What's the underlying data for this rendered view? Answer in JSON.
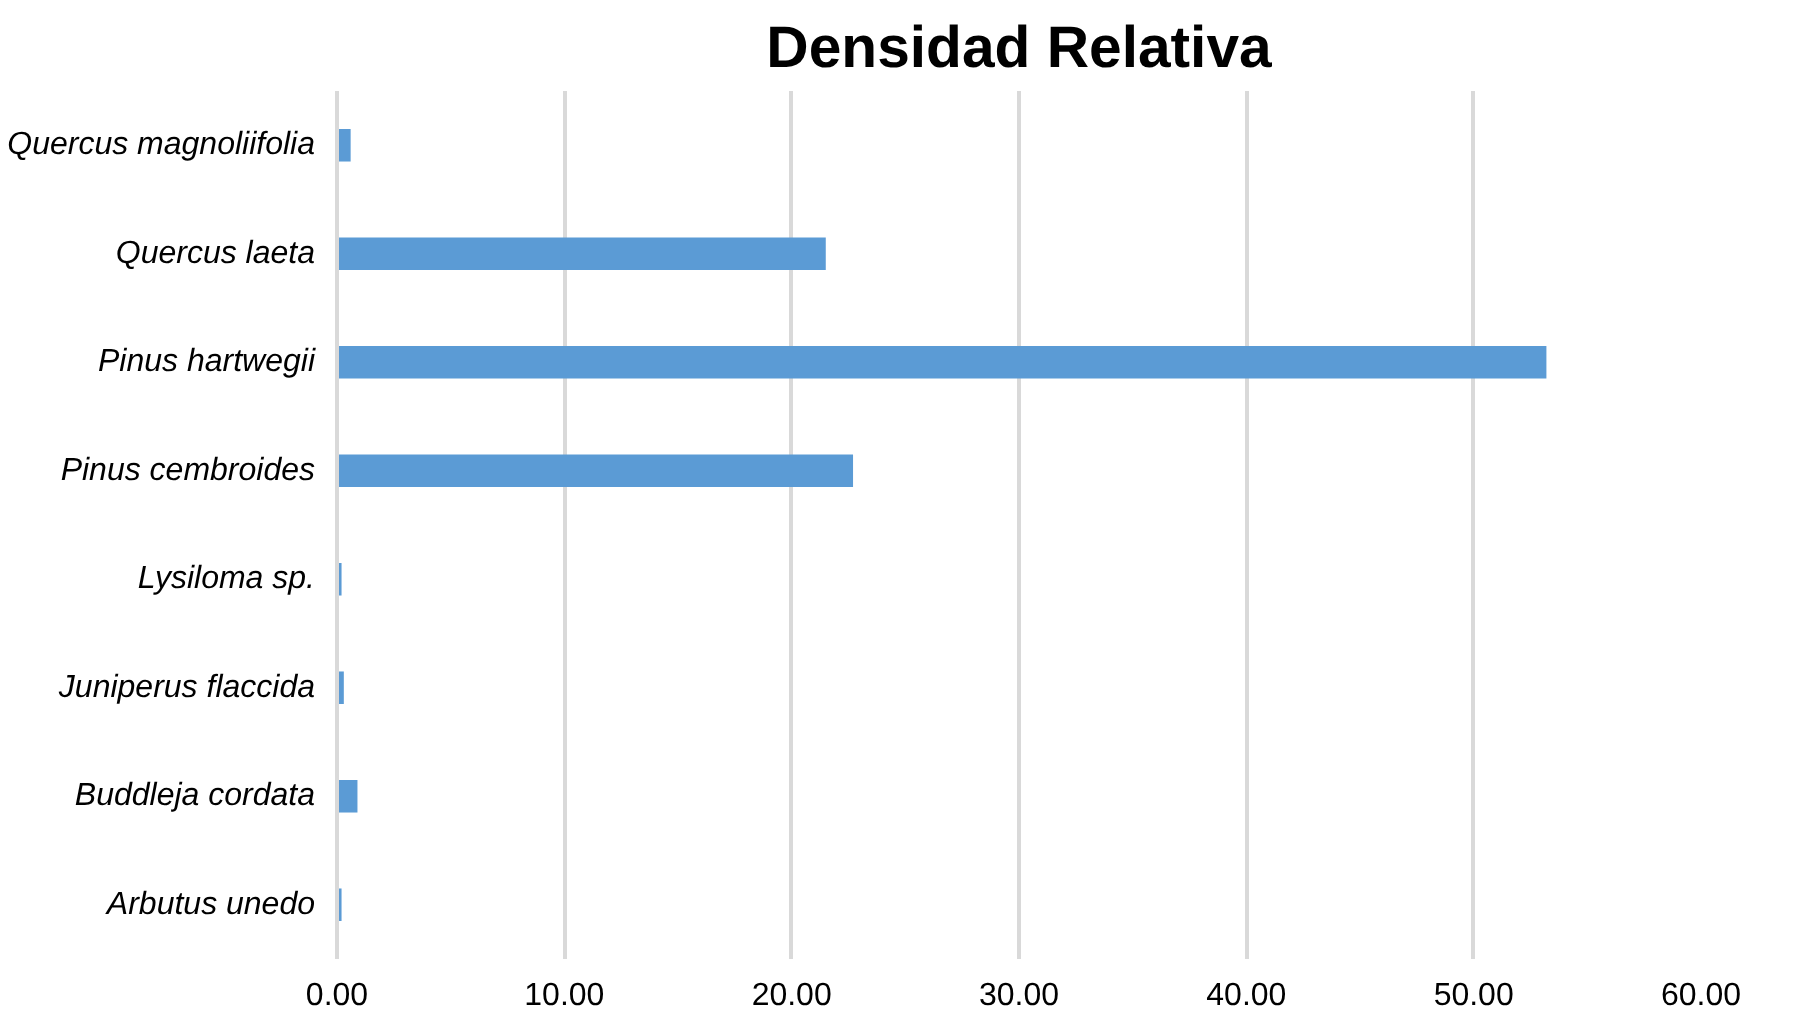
{
  "chart_data": {
    "type": "bar",
    "orientation": "horizontal",
    "title": "Densidad Relativa",
    "categories": [
      "Quercus magnoliifolia",
      "Quercus laeta",
      "Pinus hartwegii",
      "Pinus cembroides",
      "Lysiloma sp.",
      "Juniperus flaccida",
      "Buddleja cordata",
      "Arbutus unedo"
    ],
    "values": [
      0.6,
      21.5,
      53.2,
      22.7,
      0.2,
      0.3,
      0.9,
      0.2
    ],
    "color": "#5b9bd5",
    "xlim": [
      0,
      60
    ],
    "xticks": [
      {
        "value": 0,
        "label": "0.00"
      },
      {
        "value": 10,
        "label": "10.00"
      },
      {
        "value": 20,
        "label": "20.00"
      },
      {
        "value": 30,
        "label": "30.00"
      },
      {
        "value": 40,
        "label": "40.00"
      },
      {
        "value": 50,
        "label": "50.00"
      },
      {
        "value": 60,
        "label": "60.00"
      }
    ],
    "grid": "x"
  }
}
